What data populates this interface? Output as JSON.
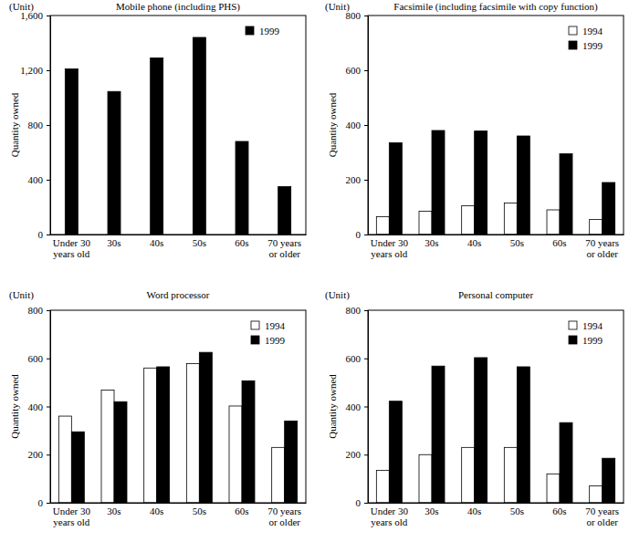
{
  "chart_data": [
    {
      "type": "bar",
      "title": "Mobile phone (including PHS)",
      "annotation": "(Unit)",
      "y_label": "Quantity owned",
      "categories": [
        "Under 30 years old",
        "30s",
        "40s",
        "50s",
        "60s",
        "70 years or older"
      ],
      "series": [
        {
          "name": "1999",
          "color": "#000000",
          "values": [
            1210,
            1045,
            1290,
            1440,
            680,
            350
          ]
        }
      ],
      "ylim": [
        0,
        1600
      ],
      "yticks": [
        0,
        400,
        800,
        {
          "value": 1200,
          "label": "1,200"
        },
        {
          "value": 1600,
          "label": "1,600"
        }
      ],
      "legend": "upper right"
    },
    {
      "type": "bar",
      "title": "Facsimile (including facsimile with copy function)",
      "annotation": "(Unit)",
      "y_label": "Quantity owned",
      "categories": [
        "Under 30 years old",
        "30s",
        "40s",
        "50s",
        "60s",
        "70 years or older"
      ],
      "series": [
        {
          "name": "1994",
          "color": "#ffffff",
          "values": [
            65,
            85,
            105,
            115,
            90,
            55
          ]
        },
        {
          "name": "1999",
          "color": "#000000",
          "values": [
            335,
            380,
            378,
            360,
            295,
            190
          ]
        }
      ],
      "ylim": [
        0,
        800
      ],
      "yticks": [
        0,
        200,
        400,
        600,
        800
      ],
      "legend": "upper right"
    },
    {
      "type": "bar",
      "title": "Word processor",
      "annotation": "(Unit)",
      "y_label": "Quantity owned",
      "categories": [
        "Under 30 years old",
        "30s",
        "40s",
        "50s",
        "60s",
        "70 years or older"
      ],
      "series": [
        {
          "name": "1994",
          "color": "#ffffff",
          "values": [
            360,
            468,
            560,
            578,
            402,
            230
          ]
        },
        {
          "name": "1999",
          "color": "#000000",
          "values": [
            295,
            420,
            565,
            625,
            507,
            340
          ]
        }
      ],
      "ylim": [
        0,
        800
      ],
      "yticks": [
        0,
        200,
        400,
        600,
        800
      ],
      "legend": "upper right"
    },
    {
      "type": "bar",
      "title": "Personal computer",
      "annotation": "(Unit)",
      "y_label": "Quantity owned",
      "categories": [
        "Under 30 years old",
        "30s",
        "40s",
        "50s",
        "60s",
        "70 years or older"
      ],
      "series": [
        {
          "name": "1994",
          "color": "#ffffff",
          "values": [
            135,
            200,
            230,
            230,
            120,
            70
          ]
        },
        {
          "name": "1999",
          "color": "#000000",
          "values": [
            422,
            568,
            603,
            565,
            333,
            185
          ]
        }
      ],
      "ylim": [
        0,
        800
      ],
      "yticks": [
        0,
        200,
        400,
        600,
        800
      ],
      "legend": "upper right"
    }
  ]
}
